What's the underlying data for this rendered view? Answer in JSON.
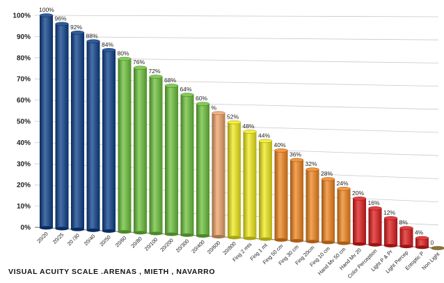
{
  "chart_data": {
    "type": "bar",
    "title": "VISUAL  ACUITY  SCALE   .ARENAS , MIETH , NAVARRO",
    "xlabel": "",
    "ylabel": "",
    "ylim": [
      0,
      100
    ],
    "yticks": [
      "0%",
      "10%",
      "20%",
      "30%",
      "40%",
      "50%",
      "60%",
      "70%",
      "80%",
      "90%",
      "100%"
    ],
    "grid": true,
    "legend": "none",
    "categories": [
      "20/20",
      "20/25",
      "20 /30",
      "20/40",
      "20/50",
      "20/60",
      "20/80",
      "20/100",
      "20/200",
      "20/300",
      "20/400",
      "20/600",
      "20/800",
      "Fing 2 mts",
      "Fing 1 mt",
      "Fing 50 cm",
      "Fing  30 cm",
      "Fing  20cm",
      "Fing 10 cm",
      "Hand Mv 50 cm",
      "Hand Mv 20",
      "Color Perception",
      "Light P & Pr",
      "Light Percep",
      "Entoptic P",
      "Non Light"
    ],
    "values": [
      100,
      96,
      92,
      88,
      84,
      80,
      76,
      72,
      68,
      64,
      60,
      56,
      52,
      48,
      44,
      40,
      36,
      32,
      28,
      24,
      20,
      16,
      12,
      8,
      4,
      0
    ],
    "data_labels": [
      "100%",
      "96%",
      "92%",
      "88%",
      "84%",
      "80%",
      "76%",
      "72%",
      "68%",
      "64%",
      "60%",
      "%",
      "52%",
      "48%",
      "44%",
      "40%",
      "36%",
      "32%",
      "28%",
      "24%",
      "20%",
      "16%",
      "12%",
      "8%",
      "4%",
      "0"
    ],
    "bar_colors": [
      "#0b3f8a",
      "#0b3f8a",
      "#0b3f8a",
      "#0b3f8a",
      "#0b3f8a",
      "#6cc23a",
      "#6cc23a",
      "#6cc23a",
      "#6cc23a",
      "#6cc23a",
      "#6cc23a",
      "#f0a46a",
      "#f2ec1c",
      "#f2ec1c",
      "#f2ec1c",
      "#f2861e",
      "#f2861e",
      "#f2861e",
      "#f2861e",
      "#f2861e",
      "#e01b1b",
      "#e01b1b",
      "#e01b1b",
      "#e01b1b",
      "#e01b1b",
      "#7a5a10"
    ]
  }
}
